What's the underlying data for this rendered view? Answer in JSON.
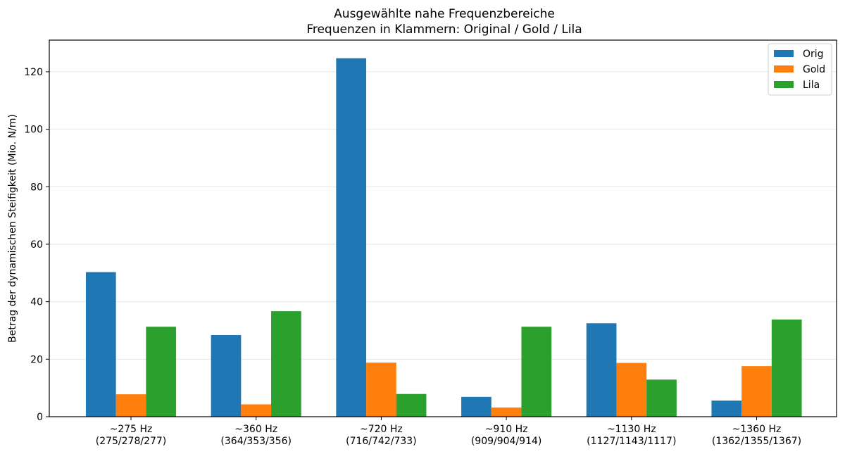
{
  "chart_data": {
    "type": "bar",
    "title": "Ausgewählte nahe Frequenzbereiche",
    "subtitle": "Frequenzen in Klammern: Original / Gold / Lila",
    "xlabel": "",
    "ylabel": "Betrag der dynamischen Steifigkeit (Mio. N/m)",
    "ylim": [
      0,
      131
    ],
    "yticks": [
      0,
      20,
      40,
      60,
      80,
      100,
      120
    ],
    "grid": "horizontal",
    "legend_position": "top-right",
    "categories": [
      {
        "line1": "~275 Hz",
        "line2": "(275/278/277)"
      },
      {
        "line1": "~360 Hz",
        "line2": "(364/353/356)"
      },
      {
        "line1": "~720 Hz",
        "line2": "(716/742/733)"
      },
      {
        "line1": "~910 Hz",
        "line2": "(909/904/914)"
      },
      {
        "line1": "~1130 Hz",
        "line2": "(1127/1143/1117)"
      },
      {
        "line1": "~1360 Hz",
        "line2": "(1362/1355/1367)"
      }
    ],
    "series": [
      {
        "name": "Orig",
        "color": "#1f77b4",
        "values": [
          50.3,
          28.4,
          124.7,
          6.9,
          32.5,
          5.6
        ]
      },
      {
        "name": "Gold",
        "color": "#ff7f0e",
        "values": [
          7.8,
          4.3,
          18.8,
          3.2,
          18.7,
          17.6
        ]
      },
      {
        "name": "Lila",
        "color": "#2ca02c",
        "values": [
          31.3,
          36.7,
          7.9,
          31.3,
          12.9,
          33.8
        ]
      }
    ]
  }
}
